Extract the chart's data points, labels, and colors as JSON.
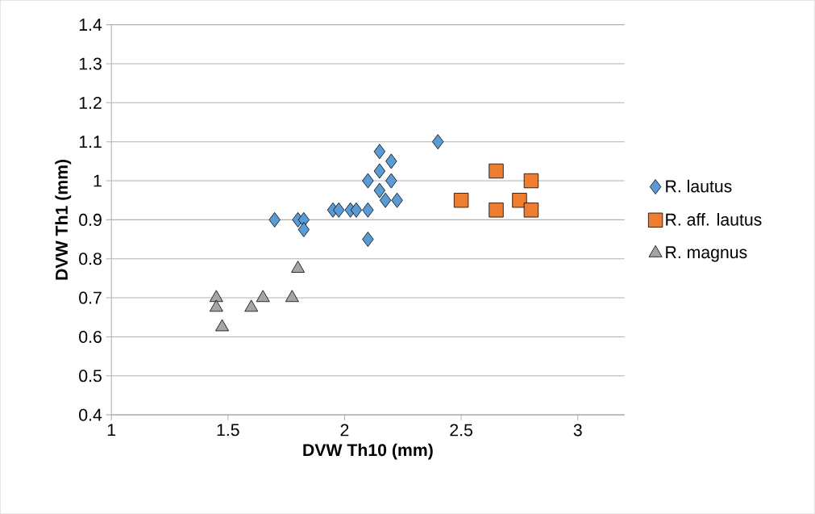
{
  "chart_data": {
    "type": "scatter",
    "xlabel": "DVW Th10 (mm)",
    "ylabel": "DVW Th1 (mm)",
    "xlim": [
      1,
      3.2
    ],
    "xticks": [
      1,
      1.5,
      2,
      2.5,
      3
    ],
    "ylim": [
      0.4,
      1.4
    ],
    "yticks": [
      0.4,
      0.5,
      0.6,
      0.7,
      0.8,
      0.9,
      1,
      1.1,
      1.2,
      1.3,
      1.4
    ],
    "grid": "y",
    "legend": "right",
    "series": [
      {
        "name": "R. lautus",
        "color": "#5b9bd5",
        "marker": "diamond",
        "x": [
          1.7,
          1.8,
          1.825,
          1.825,
          1.95,
          1.975,
          2.025,
          2.05,
          2.1,
          2.1,
          2.1,
          2.15,
          2.15,
          2.15,
          2.2,
          2.2,
          2.175,
          2.225,
          2.4
        ],
        "values": [
          0.9,
          0.9,
          0.9,
          0.875,
          0.925,
          0.925,
          0.925,
          0.925,
          0.925,
          0.85,
          1.0,
          1.075,
          1.025,
          0.975,
          1.05,
          1.0,
          0.95,
          0.95,
          1.1
        ]
      },
      {
        "name": "R. aff. lautus",
        "color": "#ed7d31",
        "marker": "square",
        "x": [
          2.5,
          2.65,
          2.65,
          2.75,
          2.8,
          2.8
        ],
        "values": [
          0.95,
          1.025,
          0.925,
          0.95,
          1.0,
          0.925
        ]
      },
      {
        "name": "R. magnus",
        "color": "#a5a5a5",
        "marker": "triangle",
        "x": [
          1.45,
          1.45,
          1.475,
          1.6,
          1.65,
          1.775,
          1.8
        ],
        "values": [
          0.7,
          0.675,
          0.625,
          0.675,
          0.7,
          0.7,
          0.775
        ]
      }
    ]
  }
}
